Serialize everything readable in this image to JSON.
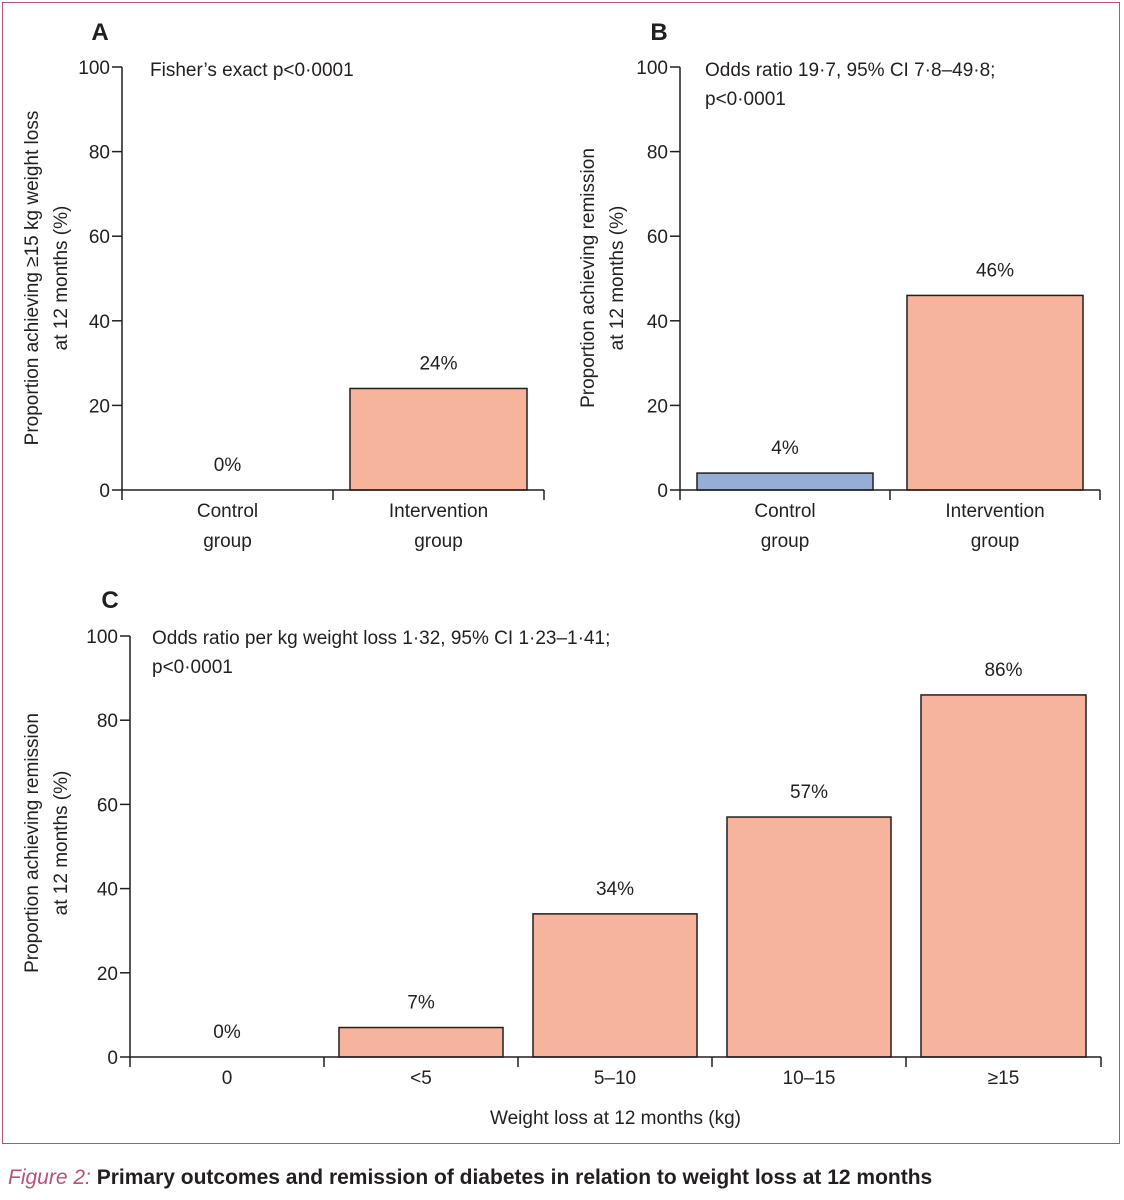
{
  "colors": {
    "frame": "#b8507a",
    "bar_intervention": "#f5b49b",
    "bar_control": "#98add6",
    "axis": "#231f20"
  },
  "chart_data": [
    {
      "type": "bar",
      "panel": "A",
      "annotation": [
        "Fisher’s exact p<0·0001"
      ],
      "ylabel": [
        "Proportion achieving ≥15 kg weight loss",
        "at 12 months (%)"
      ],
      "xlabel": "",
      "ylim": [
        0,
        100
      ],
      "yticks": [
        0,
        20,
        40,
        60,
        80,
        100
      ],
      "categories": [
        [
          "Control",
          "group"
        ],
        [
          "Intervention",
          "group"
        ]
      ],
      "values": [
        0,
        24
      ],
      "value_labels": [
        "0%",
        "24%"
      ],
      "bar_colors": [
        "#98add6",
        "#f5b49b"
      ],
      "grid": false
    },
    {
      "type": "bar",
      "panel": "B",
      "annotation": [
        "Odds ratio 19·7, 95% CI 7·8–49·8;",
        "p<0·0001"
      ],
      "ylabel": [
        "Proportion achieving remission",
        "at 12 months (%)"
      ],
      "xlabel": "",
      "ylim": [
        0,
        100
      ],
      "yticks": [
        0,
        20,
        40,
        60,
        80,
        100
      ],
      "categories": [
        [
          "Control",
          "group"
        ],
        [
          "Intervention",
          "group"
        ]
      ],
      "values": [
        4,
        46
      ],
      "value_labels": [
        "4%",
        "46%"
      ],
      "bar_colors": [
        "#98add6",
        "#f5b49b"
      ],
      "grid": false
    },
    {
      "type": "bar",
      "panel": "C",
      "annotation": [
        "Odds ratio per kg weight loss 1·32, 95% CI 1·23–1·41;",
        "p<0·0001"
      ],
      "ylabel": [
        "Proportion achieving remission",
        "at 12 months (%)"
      ],
      "xlabel": "Weight loss at 12 months (kg)",
      "ylim": [
        0,
        100
      ],
      "yticks": [
        0,
        20,
        40,
        60,
        80,
        100
      ],
      "categories": [
        [
          "0"
        ],
        [
          "<5"
        ],
        [
          "5–10"
        ],
        [
          "10–15"
        ],
        [
          "≥15"
        ]
      ],
      "values": [
        0,
        7,
        34,
        57,
        86
      ],
      "value_labels": [
        "0%",
        "7%",
        "34%",
        "57%",
        "86%"
      ],
      "bar_colors": [
        "#f5b49b",
        "#f5b49b",
        "#f5b49b",
        "#f5b49b",
        "#f5b49b"
      ],
      "grid": false
    }
  ],
  "caption": {
    "lead": "Figure 2:",
    "text": " Primary outcomes and remission of diabetes in relation to weight loss at 12 months"
  }
}
